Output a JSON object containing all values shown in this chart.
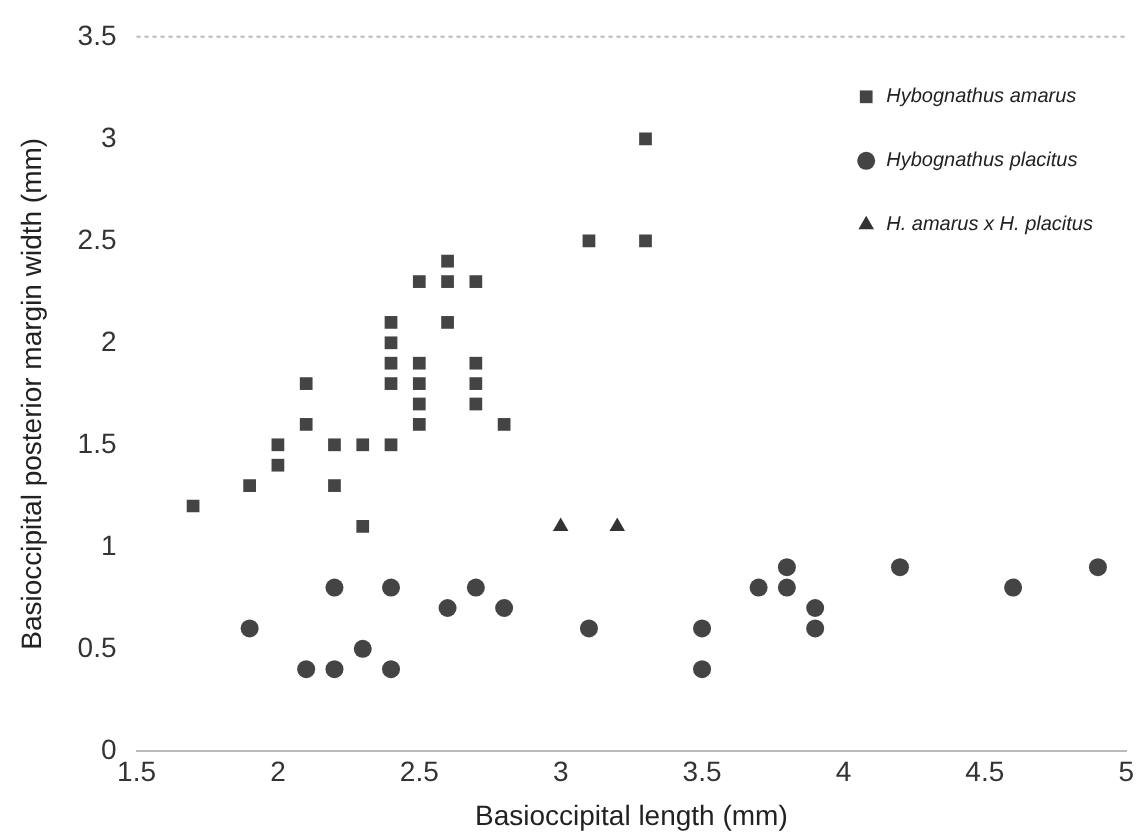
{
  "chart_data": {
    "type": "scatter",
    "xlabel": "Basioccipital length (mm)",
    "ylabel": "Basioccipital posterior margin width (mm)",
    "xlim": [
      1.5,
      5
    ],
    "xticks": [
      1.5,
      2,
      2.5,
      3,
      3.5,
      4,
      4.5,
      5
    ],
    "ylim": [
      0,
      3.5
    ],
    "yticks": [
      0,
      0.5,
      1,
      1.5,
      2,
      2.5,
      3,
      3.5
    ],
    "grid": false,
    "legend": "top right",
    "series": [
      {
        "name": "Hybognathus amarus",
        "color": "#444444",
        "marker": "square",
        "x": [
          1.7,
          1.9,
          2.0,
          2.0,
          2.1,
          2.1,
          2.2,
          2.2,
          2.3,
          2.3,
          2.4,
          2.4,
          2.4,
          2.4,
          2.4,
          2.5,
          2.5,
          2.5,
          2.5,
          2.5,
          2.6,
          2.6,
          2.6,
          2.7,
          2.7,
          2.7,
          2.7,
          2.8,
          3.1,
          3.3,
          3.3
        ],
        "values": [
          1.2,
          1.3,
          1.4,
          1.5,
          1.6,
          1.8,
          1.5,
          1.3,
          1.5,
          1.1,
          1.8,
          1.9,
          2.0,
          2.1,
          1.5,
          2.3,
          1.9,
          1.8,
          1.7,
          1.6,
          2.1,
          2.3,
          2.4,
          2.3,
          1.9,
          1.8,
          1.7,
          1.6,
          2.5,
          2.5,
          3.0
        ]
      },
      {
        "name": "Hybognathus placitus",
        "color": "#444444",
        "marker": "circle",
        "x": [
          1.9,
          2.1,
          2.2,
          2.2,
          2.3,
          2.4,
          2.4,
          2.6,
          2.7,
          2.8,
          3.1,
          3.5,
          3.5,
          3.7,
          3.8,
          3.8,
          3.9,
          3.9,
          4.2,
          4.6,
          4.9
        ],
        "values": [
          0.6,
          0.4,
          0.4,
          0.8,
          0.5,
          0.8,
          0.4,
          0.7,
          0.8,
          0.7,
          0.6,
          0.6,
          0.4,
          0.8,
          0.9,
          0.8,
          0.7,
          0.6,
          0.9,
          0.8,
          0.9
        ]
      },
      {
        "name": "H. amarus x H. placitus",
        "color": "#333333",
        "marker": "triangle",
        "x": [
          3.0,
          3.2
        ],
        "values": [
          1.1,
          1.1
        ]
      }
    ]
  }
}
